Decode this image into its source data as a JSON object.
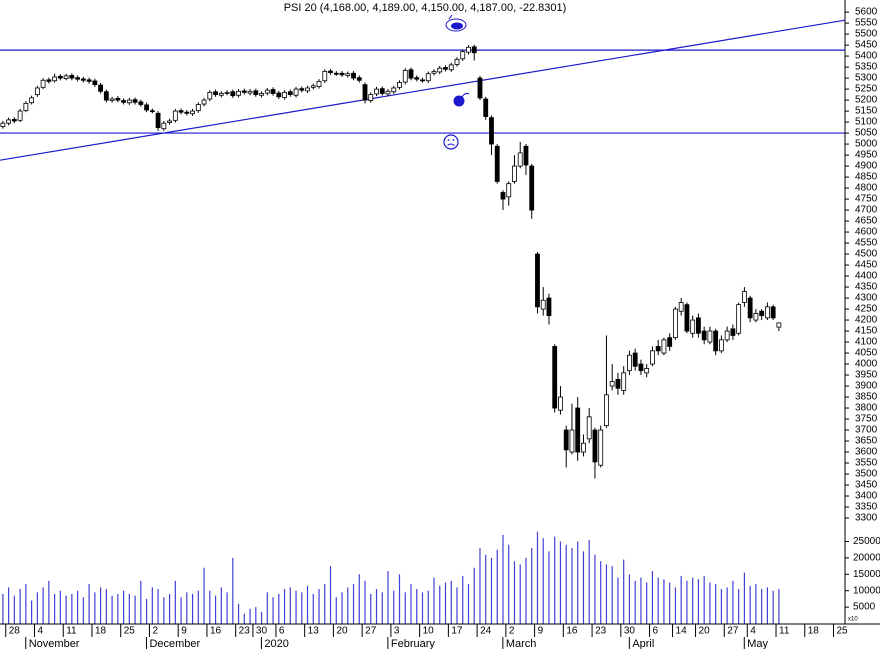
{
  "chart_data": {
    "type": "candlestick",
    "title": "PSI 20 (4,168.00, 4,189.00, 4,150.00, 4,187.00, -22.8301)",
    "categories": [
      null,
      "28",
      null,
      null,
      null,
      null,
      "4",
      null,
      null,
      null,
      null,
      "11",
      null,
      null,
      null,
      null,
      "18",
      null,
      null,
      null,
      null,
      "25",
      null,
      null,
      null,
      null,
      "2",
      null,
      null,
      null,
      null,
      "9",
      null,
      null,
      null,
      null,
      "16",
      null,
      null,
      null,
      null,
      "23",
      null,
      null,
      "30",
      null,
      null,
      null,
      "6",
      null,
      null,
      null,
      null,
      "13",
      null,
      null,
      null,
      null,
      "20",
      null,
      null,
      null,
      null,
      "27",
      null,
      null,
      null,
      null,
      "3",
      null,
      null,
      null,
      null,
      "10",
      null,
      null,
      null,
      null,
      "17",
      null,
      null,
      null,
      null,
      "24",
      null,
      null,
      null,
      null,
      "2",
      null,
      null,
      null,
      null,
      "9",
      null,
      null,
      null,
      null,
      "16",
      null,
      null,
      null,
      null,
      "23",
      null,
      null,
      null,
      null,
      "30",
      null,
      null,
      null,
      null,
      "6",
      null,
      null,
      null,
      "14",
      null,
      null,
      null,
      "20",
      null,
      null,
      null,
      null,
      "27",
      null,
      null,
      null,
      "4",
      null,
      null,
      null,
      null,
      "11",
      null,
      null,
      null,
      null,
      "18",
      null,
      null,
      null,
      null,
      "25",
      null
    ],
    "months": [
      null,
      null,
      null,
      null,
      null,
      "November",
      null,
      null,
      null,
      null,
      null,
      null,
      null,
      null,
      null,
      null,
      null,
      null,
      null,
      null,
      null,
      null,
      null,
      null,
      null,
      null,
      "December",
      null,
      null,
      null,
      null,
      null,
      null,
      null,
      null,
      null,
      null,
      null,
      null,
      null,
      null,
      null,
      null,
      null,
      null,
      null,
      "2020",
      null,
      null,
      null,
      null,
      null,
      null,
      null,
      null,
      null,
      null,
      null,
      null,
      null,
      null,
      null,
      null,
      null,
      null,
      null,
      null,
      null,
      "February",
      null,
      null,
      null,
      null,
      null,
      null,
      null,
      null,
      null,
      null,
      null,
      null,
      null,
      null,
      null,
      null,
      null,
      null,
      null,
      "March",
      null,
      null,
      null,
      null,
      null,
      null,
      null,
      null,
      null,
      null,
      null,
      null,
      null,
      null,
      null,
      null,
      null,
      null,
      null,
      null,
      null,
      "April",
      null,
      null,
      null,
      null,
      null,
      null,
      null,
      null,
      null,
      null,
      null,
      null,
      null,
      null,
      null,
      null,
      null,
      null,
      null,
      "May",
      null,
      null,
      null,
      null,
      null,
      null,
      null,
      null,
      null,
      null,
      null,
      null,
      null,
      null,
      null,
      null
    ],
    "open": [
      5080,
      5095,
      5112,
      5108,
      5152,
      5188,
      5225,
      5258,
      5292,
      5288,
      5308,
      5298,
      5312,
      5302,
      5296,
      5292,
      5287,
      5268,
      5238,
      5198,
      5208,
      5198,
      5188,
      5202,
      5192,
      5178,
      5152,
      5140,
      5070,
      5098,
      5108,
      5152,
      5145,
      5138,
      5152,
      5182,
      5205,
      5238,
      5222,
      5232,
      5238,
      5222,
      5242,
      5232,
      5242,
      5222,
      5232,
      5248,
      5232,
      5212,
      5238,
      5222,
      5252,
      5242,
      5258,
      5262,
      5288,
      5332,
      5322,
      5322,
      5312,
      5322,
      5302,
      5270,
      5198,
      5228,
      5252,
      5228,
      5238,
      5258,
      5282,
      5338,
      5302,
      5292,
      5288,
      5322,
      5328,
      5348,
      5338,
      5362,
      5388,
      5418,
      5442,
      5300,
      5205,
      5120,
      4990,
      4780,
      4760,
      4830,
      4900,
      4990,
      4900,
      4500,
      4250,
      4300,
      4080,
      3790,
      3700,
      3600,
      3800,
      3600,
      3660,
      3700,
      3540,
      3720,
      3900,
      3930,
      3880,
      3970,
      4050,
      4000,
      3960,
      4000,
      4080,
      4050,
      4120,
      4120,
      4240,
      4270,
      4140,
      4210,
      4150,
      4100,
      4150,
      4060,
      4110,
      4160,
      4140,
      4280,
      4300,
      4200,
      4240,
      4210,
      4260,
      4168,
      null,
      null,
      null,
      null,
      null,
      null,
      null,
      null,
      null,
      null,
      null
    ],
    "high": [
      5105,
      5120,
      5122,
      5160,
      5195,
      5220,
      5265,
      5300,
      5302,
      5320,
      5318,
      5320,
      5322,
      5312,
      5306,
      5302,
      5297,
      5278,
      5248,
      5215,
      5218,
      5208,
      5210,
      5212,
      5202,
      5188,
      5162,
      5150,
      5105,
      5115,
      5160,
      5162,
      5155,
      5160,
      5190,
      5210,
      5245,
      5248,
      5240,
      5245,
      5248,
      5250,
      5252,
      5250,
      5252,
      5240,
      5255,
      5258,
      5242,
      5245,
      5248,
      5260,
      5262,
      5265,
      5275,
      5295,
      5340,
      5342,
      5332,
      5332,
      5330,
      5332,
      5312,
      5280,
      5235,
      5260,
      5262,
      5250,
      5265,
      5290,
      5345,
      5348,
      5312,
      5302,
      5330,
      5340,
      5355,
      5358,
      5370,
      5395,
      5430,
      5450,
      5452,
      5310,
      5215,
      5130,
      5000,
      4790,
      4830,
      4950,
      5010,
      5000,
      4910,
      4510,
      4350,
      4320,
      4090,
      3900,
      3720,
      3820,
      3850,
      3680,
      3800,
      3710,
      3720,
      4130,
      4000,
      3960,
      3990,
      4060,
      4070,
      4020,
      4000,
      4080,
      4110,
      4120,
      4140,
      4260,
      4300,
      4280,
      4220,
      4230,
      4170,
      4170,
      4160,
      4130,
      4170,
      4180,
      4280,
      4350,
      4310,
      4250,
      4250,
      4280,
      4270,
      4189,
      null,
      null,
      null,
      null,
      null,
      null,
      null,
      null,
      null,
      null,
      null
    ],
    "low": [
      5070,
      5085,
      5095,
      5100,
      5145,
      5180,
      5215,
      5250,
      5275,
      5280,
      5290,
      5290,
      5290,
      5285,
      5280,
      5275,
      5260,
      5230,
      5190,
      5188,
      5190,
      5180,
      5178,
      5180,
      5170,
      5145,
      5140,
      5060,
      5060,
      5088,
      5098,
      5135,
      5130,
      5128,
      5142,
      5172,
      5195,
      5215,
      5212,
      5222,
      5210,
      5212,
      5225,
      5222,
      5215,
      5212,
      5222,
      5220,
      5205,
      5202,
      5215,
      5212,
      5235,
      5232,
      5248,
      5252,
      5278,
      5315,
      5310,
      5305,
      5302,
      5290,
      5280,
      5185,
      5188,
      5218,
      5220,
      5218,
      5228,
      5248,
      5272,
      5290,
      5285,
      5280,
      5278,
      5312,
      5318,
      5330,
      5328,
      5352,
      5378,
      5408,
      5380,
      5200,
      5110,
      4950,
      4820,
      4700,
      4720,
      4820,
      4890,
      4860,
      4660,
      4230,
      4220,
      4180,
      3780,
      3770,
      3530,
      3590,
      3560,
      3580,
      3640,
      3480,
      3530,
      3710,
      3880,
      3860,
      3860,
      3950,
      3970,
      3950,
      3940,
      3990,
      4040,
      4040,
      4060,
      4110,
      4220,
      4140,
      4120,
      4120,
      4090,
      4090,
      4040,
      4050,
      4100,
      4110,
      4130,
      4260,
      4190,
      4190,
      4200,
      4200,
      4200,
      4150,
      null,
      null,
      null,
      null,
      null,
      null,
      null,
      null,
      null,
      null,
      null
    ],
    "close": [
      5095,
      5110,
      5105,
      5150,
      5185,
      5210,
      5255,
      5290,
      5285,
      5305,
      5300,
      5310,
      5300,
      5295,
      5290,
      5285,
      5270,
      5240,
      5200,
      5205,
      5200,
      5190,
      5200,
      5190,
      5180,
      5155,
      5150,
      5075,
      5095,
      5105,
      5150,
      5145,
      5140,
      5150,
      5180,
      5200,
      5235,
      5225,
      5230,
      5235,
      5220,
      5240,
      5235,
      5240,
      5225,
      5230,
      5245,
      5230,
      5215,
      5235,
      5225,
      5250,
      5245,
      5255,
      5265,
      5285,
      5330,
      5325,
      5320,
      5315,
      5320,
      5300,
      5290,
      5200,
      5225,
      5250,
      5230,
      5240,
      5255,
      5280,
      5335,
      5300,
      5295,
      5290,
      5320,
      5330,
      5345,
      5340,
      5360,
      5385,
      5420,
      5440,
      5415,
      5210,
      5125,
      5000,
      4830,
      4750,
      4820,
      4900,
      4960,
      4905,
      4700,
      4260,
      4290,
      4220,
      3800,
      3850,
      3610,
      3700,
      3600,
      3640,
      3760,
      3555,
      3700,
      3860,
      3920,
      3890,
      3960,
      4040,
      3990,
      3970,
      3980,
      4060,
      4060,
      4110,
      4080,
      4250,
      4280,
      4150,
      4200,
      4140,
      4110,
      4150,
      4060,
      4110,
      4150,
      4130,
      4270,
      4330,
      4210,
      4230,
      4220,
      4260,
      4210,
      4187,
      null,
      null,
      null,
      null,
      null,
      null,
      null,
      null,
      null,
      null,
      null
    ],
    "volume": [
      9000,
      11000,
      8500,
      10500,
      12000,
      7000,
      9500,
      11000,
      13000,
      9000,
      10000,
      8500,
      9000,
      10000,
      8000,
      12000,
      9500,
      11000,
      10500,
      8500,
      9000,
      10000,
      9000,
      8500,
      13000,
      7500,
      11000,
      10500,
      8000,
      9000,
      13000,
      8000,
      9500,
      9000,
      10000,
      17000,
      10000,
      8500,
      11000,
      9500,
      20000,
      6000,
      3000,
      4500,
      5000,
      3500,
      9500,
      8000,
      9000,
      10500,
      11000,
      10000,
      9500,
      11500,
      9000,
      10500,
      12000,
      17500,
      8000,
      9500,
      11000,
      12000,
      15000,
      13000,
      9000,
      10500,
      9500,
      16000,
      10000,
      15000,
      9500,
      12000,
      10500,
      9500,
      10000,
      14000,
      11500,
      12500,
      13000,
      11000,
      14500,
      12000,
      17000,
      23000,
      21000,
      20000,
      22500,
      27000,
      24000,
      19000,
      18000,
      20000,
      23000,
      28000,
      26000,
      22000,
      26500,
      25000,
      24000,
      23000,
      25000,
      22000,
      25500,
      21000,
      19000,
      18000,
      17500,
      14000,
      19500,
      15000,
      13000,
      14000,
      12500,
      16000,
      14000,
      13500,
      12500,
      11000,
      14500,
      13000,
      14000,
      13500,
      14500,
      12500,
      12000,
      10500,
      11000,
      13000,
      10500,
      15500,
      11500,
      12000,
      10500,
      11000,
      10000,
      10500,
      null,
      null,
      null,
      null,
      null,
      null,
      null,
      null,
      null,
      null,
      null
    ],
    "ylim": [
      3291,
      5655
    ],
    "yticks": [
      3300,
      3350,
      3400,
      3450,
      3500,
      3550,
      3600,
      3650,
      3700,
      3750,
      3800,
      3850,
      3900,
      3950,
      4000,
      4050,
      4100,
      4150,
      4200,
      4250,
      4300,
      4350,
      4400,
      4450,
      4500,
      4550,
      4600,
      4650,
      4700,
      4750,
      4800,
      4850,
      4900,
      4950,
      5000,
      5050,
      5100,
      5150,
      5200,
      5250,
      5300,
      5350,
      5400,
      5450,
      5500,
      5550,
      5600
    ],
    "volume_ylim": [
      0,
      28500
    ],
    "volume_ticks": [
      5000,
      10000,
      15000,
      20000,
      25000
    ],
    "volume_note": "x10",
    "hlines": [
      5427,
      5050
    ],
    "trendline": {
      "x": [
        0,
        146
      ],
      "values": [
        4929,
        5561
      ]
    },
    "up_color": "#ffffff",
    "down_color": "#000000",
    "line_color": "#1a1acc",
    "volume_color": "#4040d8"
  }
}
